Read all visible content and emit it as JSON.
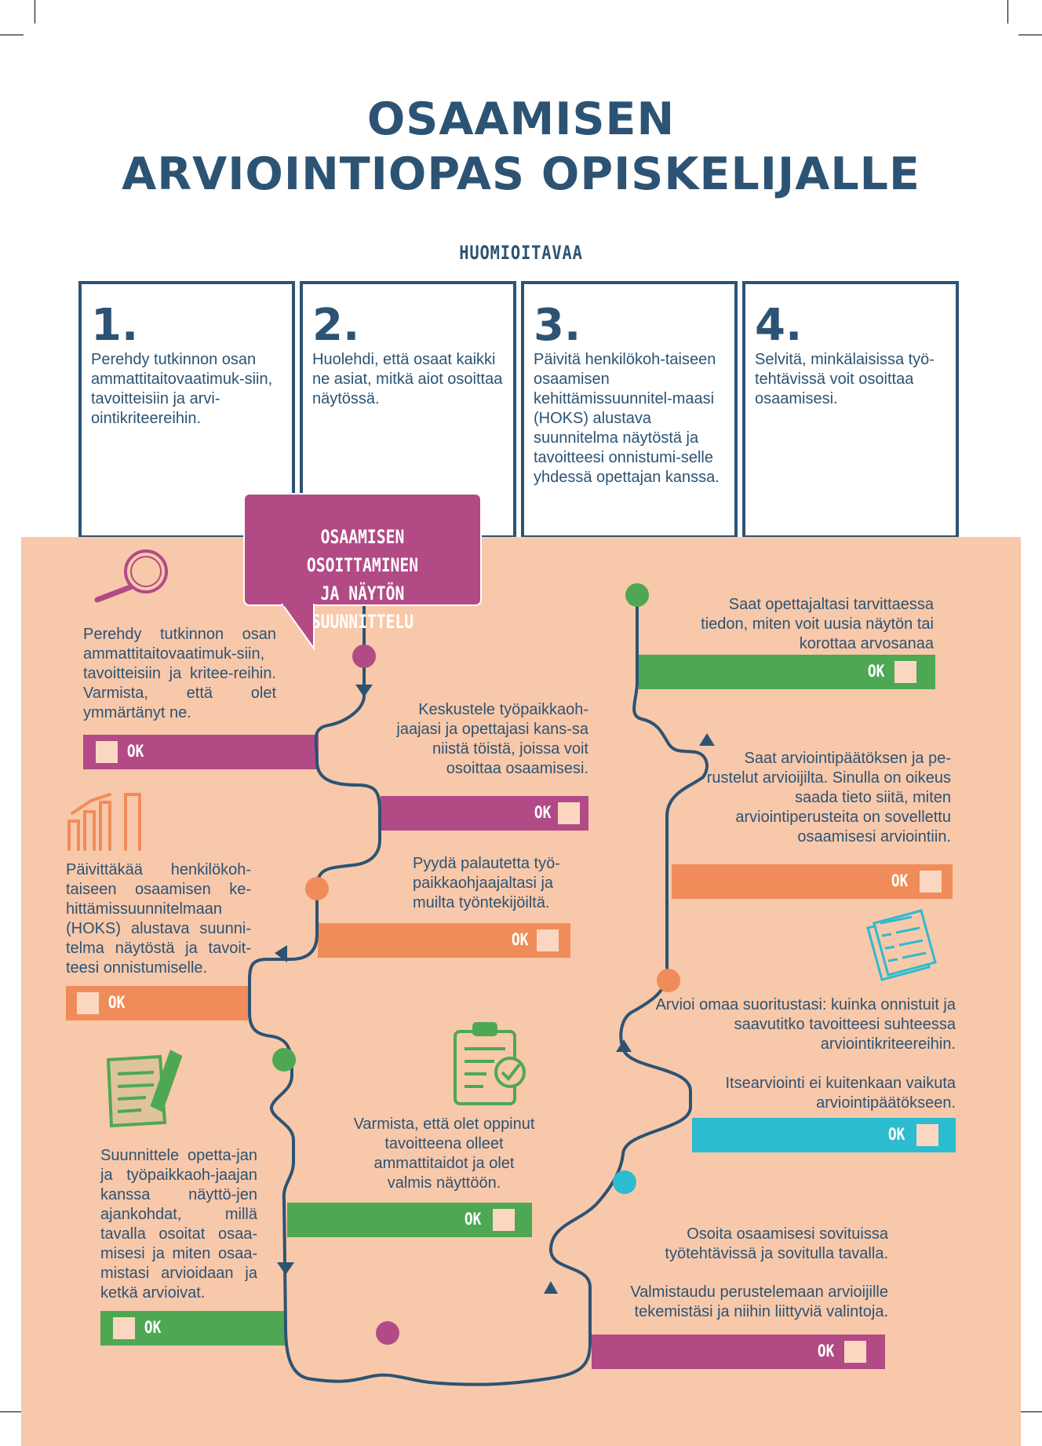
{
  "title": {
    "line1": "OSAAMISEN",
    "line2": "ARVIOINTIOPAS OPISKELIJALLE"
  },
  "subheading": "HUOMIOITAVAA",
  "boxes": [
    {
      "num": "1.",
      "text": "Perehdy tutkinnon osan ammattitaitovaatimuk-siin, tavoitteisiin ja arvi-ointikriteereihin."
    },
    {
      "num": "2.",
      "text": "Huolehdi, että osaat kaikki ne asiat, mitkä aiot osoittaa näytössä."
    },
    {
      "num": "3.",
      "text": "Päivitä henkilökoh-taiseen osaamisen kehittämissuunnitel-maasi (HOKS) alustava suunnitelma näytöstä ja tavoitteesi onnistumi-selle yhdessä opettajan kanssa."
    },
    {
      "num": "4.",
      "text": "Selvitä, minkälaisissa työ-tehtävissä voit osoittaa osaamisesi."
    }
  ],
  "bubble": {
    "line1": "OSAAMISEN OSOITTAMINEN",
    "line2": "JA NÄYTÖN SUUNNITTELU"
  },
  "ok_label": "OK",
  "steps": {
    "s1": "Perehdy tutkinnon osan ammattitaitovaatimuk-siin, tavoitteisiin ja kritee-reihin. Varmista, että olet ymmärtänyt ne.",
    "s2": "Keskustele työpaikkaoh-jaajasi ja opettajasi kans-sa niistä töistä, joissa voit osoittaa osaamisesi.",
    "s3": "Päivittäkää henkilökoh-taiseen osaamisen ke-hittämissuunnitelmaan (HOKS) alustava suunni-telma näytöstä ja tavoit-teesi onnistumiselle.",
    "s4": "Pyydä palautetta työ-paikkaohjaajaltasi ja muilta työntekijöiltä.",
    "s5": "Suunnittele opetta-jan ja työpaikkaoh-jaajan kanssa näyttö-jen ajankohdat, millä tavalla osoitat osaa-misesi ja miten osaa-mistasi arvioidaan ja ketkä arvioivat.",
    "s6": "Varmista, että olet oppinut tavoitteena olleet ammattitaidot ja olet valmis näyttöön.",
    "s7": "Osoita osaamisesi sovituissa työtehtävissä ja sovitulla tavalla.",
    "s8": "Valmistaudu perustelemaan arvioijille tekemistäsi ja niihin liittyviä valintoja.",
    "s9": "Itsearviointi ei kuitenkaan vaikuta arviointipäätökseen.",
    "s10": "Arvioi omaa suoritustasi: kuinka onnistuit ja saavutitko tavoitteesi suhteessa arviointikriteereihin.",
    "s11": "Saat arviointipäätöksen ja pe-rustelut arvioijilta. Sinulla on oikeus saada tieto siitä, miten arviointiperusteita on sovellettu osaamisesi arviointiin.",
    "s12": "Saat opettajaltasi tarvittaessa tiedon, miten voit uusia näytön tai korottaa arvosanaa"
  },
  "icons": [
    "magnifier-icon",
    "bar-chart-icon",
    "notepad-pencil-icon",
    "clipboard-check-icon",
    "checklist-icon"
  ],
  "colors": {
    "navy": "#2c5373",
    "purple": "#b24a86",
    "orange": "#f08c59",
    "green": "#4ea853",
    "cyan": "#2bbccf",
    "peach": "#f8c8aa"
  }
}
